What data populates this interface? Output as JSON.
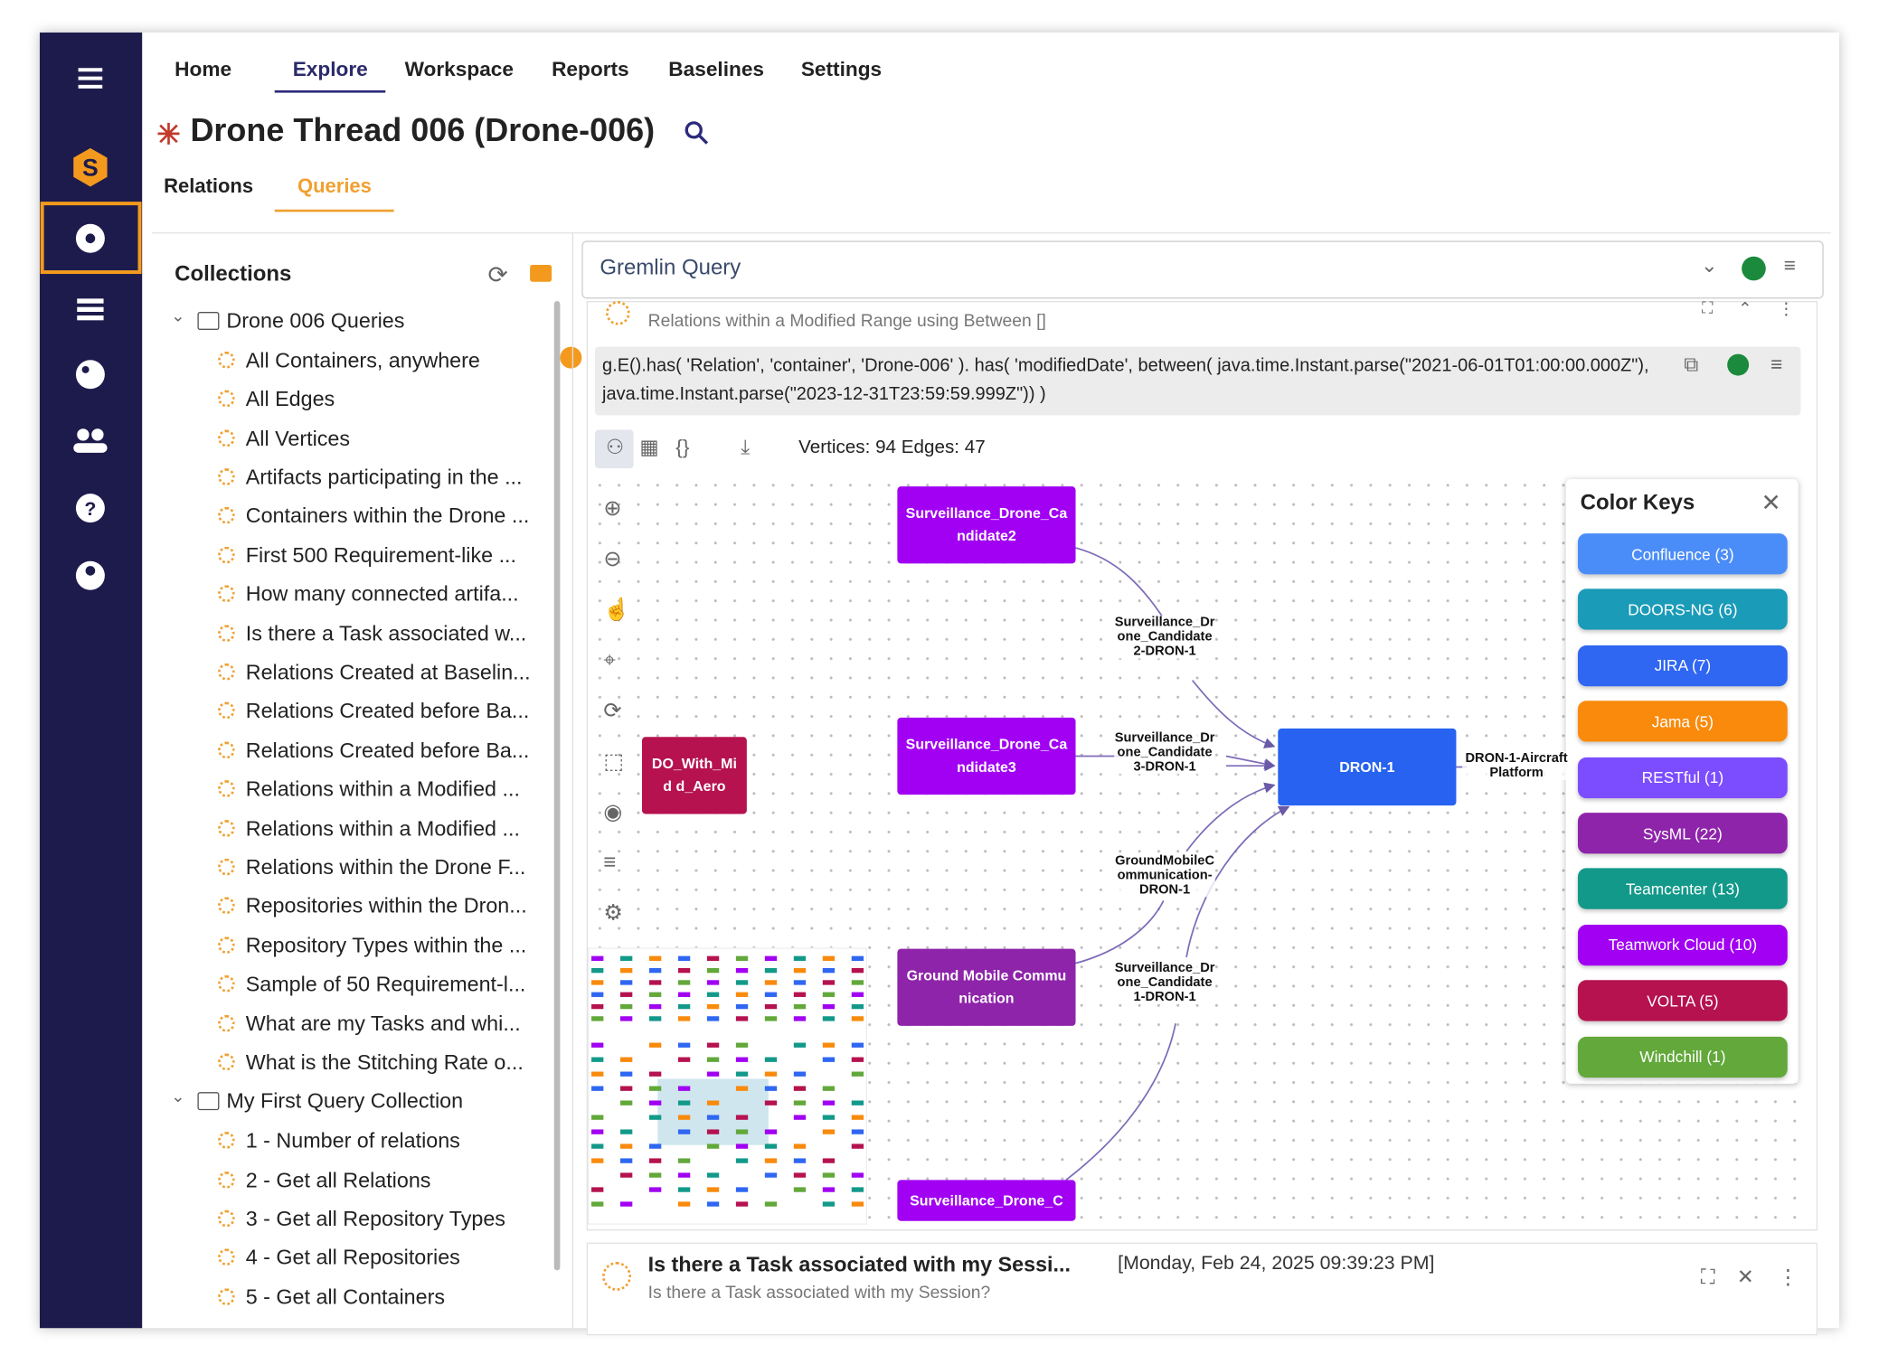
{
  "nav": {
    "tabs": [
      "Home",
      "Explore",
      "Workspace",
      "Reports",
      "Baselines",
      "Settings"
    ],
    "active_tab": 1
  },
  "header": {
    "title": "Drone Thread 006 (Drone-006)"
  },
  "subtabs": {
    "tabs": [
      "Relations",
      "Queries"
    ],
    "active_tab": 1
  },
  "collections": {
    "title": "Collections",
    "groups": [
      {
        "name": "Drone 006 Queries",
        "items": [
          "All Containers, anywhere",
          "All Edges",
          "All Vertices",
          "Artifacts participating in the ...",
          "Containers within the Drone ...",
          "First 500 Requirement-like ...",
          "How many connected artifa...",
          "Is there a Task associated w...",
          "Relations Created at Baselin...",
          "Relations Created before Ba...",
          "Relations Created before Ba...",
          "Relations within a Modified ...",
          "Relations within a Modified ...",
          "Relations within the Drone F...",
          "Repositories within the Dron...",
          "Repository Types within the ...",
          "Sample of 50 Requirement-l...",
          "What are my Tasks and whi...",
          "What is the Stitching Rate o..."
        ]
      },
      {
        "name": "My First Query Collection",
        "items": [
          "1 - Number of relations",
          "2 - Get all Relations",
          "3 - Get all Repository Types",
          "4 - Get all Repositories",
          "5 - Get all Containers"
        ]
      }
    ]
  },
  "query_bar": {
    "placeholder": "Gremlin Query"
  },
  "result1": {
    "title": "Relations within a Modified Range using Between []",
    "query": "g.E().has( 'Relation', 'container', 'Drone-006' ). has( 'modifiedDate', between( java.time.Instant.parse(\"2021-06-01T01:00:00.000Z\"), java.time.Instant.parse(\"2023-12-31T23:59:59.999Z\")) )",
    "stats": "Vertices: 94 Edges: 47"
  },
  "graph": {
    "nodes": [
      {
        "label": "Surveillance_Drone_Candidate2",
        "color": "#a100f2"
      },
      {
        "label": "Surveillance_Drone_Candidate3",
        "color": "#a100f2"
      },
      {
        "label": "DO_With_Mid d_Aero",
        "color": "#b5124f"
      },
      {
        "label": "DRON-1",
        "color": "#2763f0"
      },
      {
        "label": "Ground Mobile Communication",
        "color": "#8e24aa"
      },
      {
        "label": "Surveillance_Drone_C",
        "color": "#a100f2"
      }
    ],
    "edge_labels": [
      "Surveillance_Drone_Candidate2-DRON-1",
      "Surveillance_Drone_Candidate3-DRON-1",
      "GroundMobileCommunication-DRON-1",
      "Surveillance_Drone_Candidate1-DRON-1",
      "DRON-1-AircraftPlatform"
    ]
  },
  "color_keys": {
    "title": "Color Keys",
    "items": [
      {
        "label": "Confluence (3)",
        "color": "#4b8df8"
      },
      {
        "label": "DOORS-NG (6)",
        "color": "#1a9bb8"
      },
      {
        "label": "JIRA (7)",
        "color": "#2f66f2"
      },
      {
        "label": "Jama (5)",
        "color": "#f98a0c"
      },
      {
        "label": "RESTful (1)",
        "color": "#7c4dff"
      },
      {
        "label": "SysML (22)",
        "color": "#8e24aa"
      },
      {
        "label": "Teamcenter (13)",
        "color": "#12998a"
      },
      {
        "label": "Teamwork Cloud (10)",
        "color": "#a100f2"
      },
      {
        "label": "VOLTA (5)",
        "color": "#b5124f"
      },
      {
        "label": "Windchill (1)",
        "color": "#62a83a"
      }
    ]
  },
  "result2": {
    "title": "Is there a Task associated with my Sessi...",
    "timestamp": "[Monday, Feb 24, 2025 09:39:23 PM]",
    "subtitle": "Is there a Task associated with my Session?"
  }
}
